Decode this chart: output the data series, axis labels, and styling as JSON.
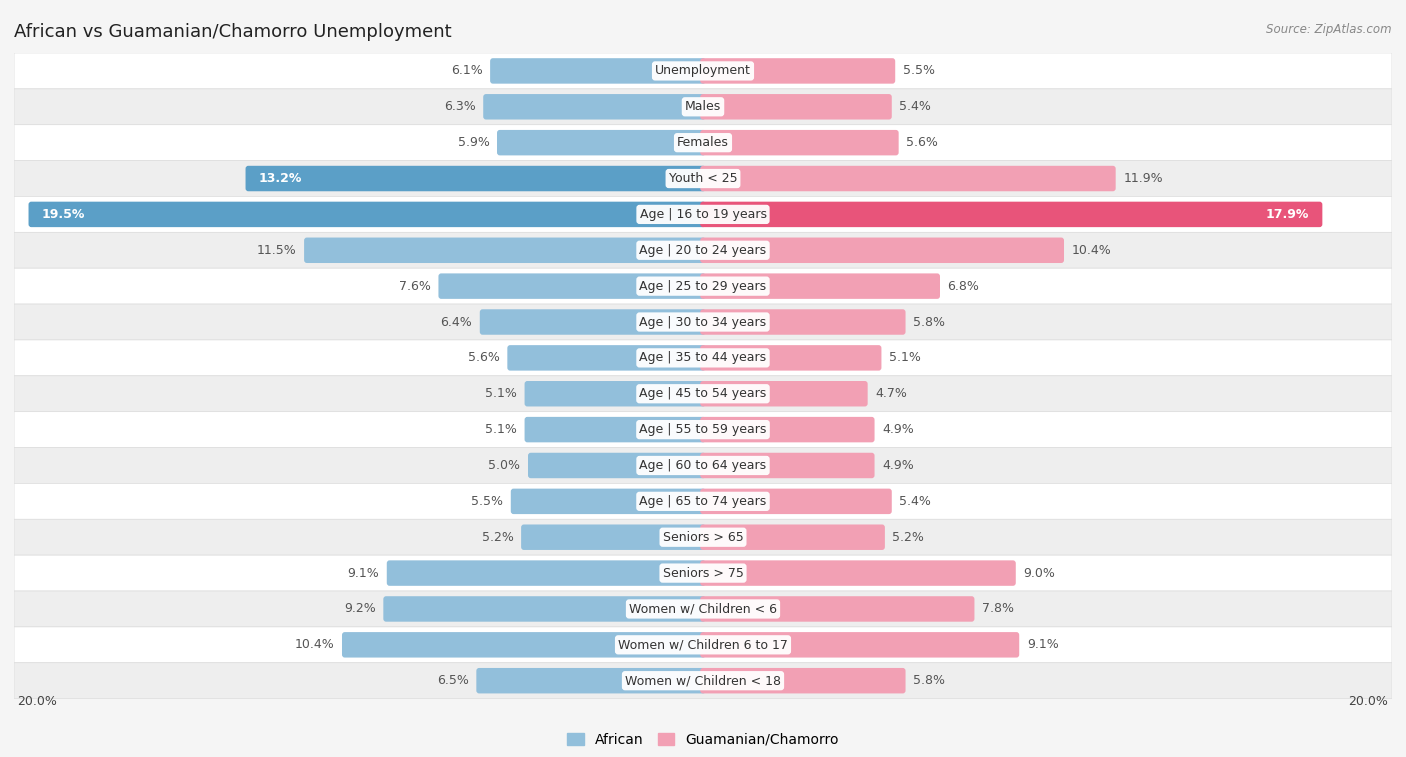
{
  "title": "African vs Guamanian/Chamorro Unemployment",
  "source": "Source: ZipAtlas.com",
  "categories": [
    "Unemployment",
    "Males",
    "Females",
    "Youth < 25",
    "Age | 16 to 19 years",
    "Age | 20 to 24 years",
    "Age | 25 to 29 years",
    "Age | 30 to 34 years",
    "Age | 35 to 44 years",
    "Age | 45 to 54 years",
    "Age | 55 to 59 years",
    "Age | 60 to 64 years",
    "Age | 65 to 74 years",
    "Seniors > 65",
    "Seniors > 75",
    "Women w/ Children < 6",
    "Women w/ Children 6 to 17",
    "Women w/ Children < 18"
  ],
  "african_values": [
    6.1,
    6.3,
    5.9,
    13.2,
    19.5,
    11.5,
    7.6,
    6.4,
    5.6,
    5.1,
    5.1,
    5.0,
    5.5,
    5.2,
    9.1,
    9.2,
    10.4,
    6.5
  ],
  "guamanian_values": [
    5.5,
    5.4,
    5.6,
    11.9,
    17.9,
    10.4,
    6.8,
    5.8,
    5.1,
    4.7,
    4.9,
    4.9,
    5.4,
    5.2,
    9.0,
    7.8,
    9.1,
    5.8
  ],
  "african_color": "#92bfdb",
  "african_color_highlight": "#5b9fc7",
  "guamanian_color": "#f2a0b4",
  "guamanian_color_highlight": "#e8547a",
  "label_color_dark": "#555555",
  "label_color_white": "#ffffff",
  "bg_color": "#f5f5f5",
  "row_bg_white": "#ffffff",
  "row_bg_gray": "#eeeeee",
  "max_value": 20.0,
  "legend_african": "African",
  "legend_guamanian": "Guamanian/Chamorro",
  "title_fontsize": 13,
  "cat_fontsize": 9,
  "value_fontsize": 9,
  "legend_fontsize": 10
}
